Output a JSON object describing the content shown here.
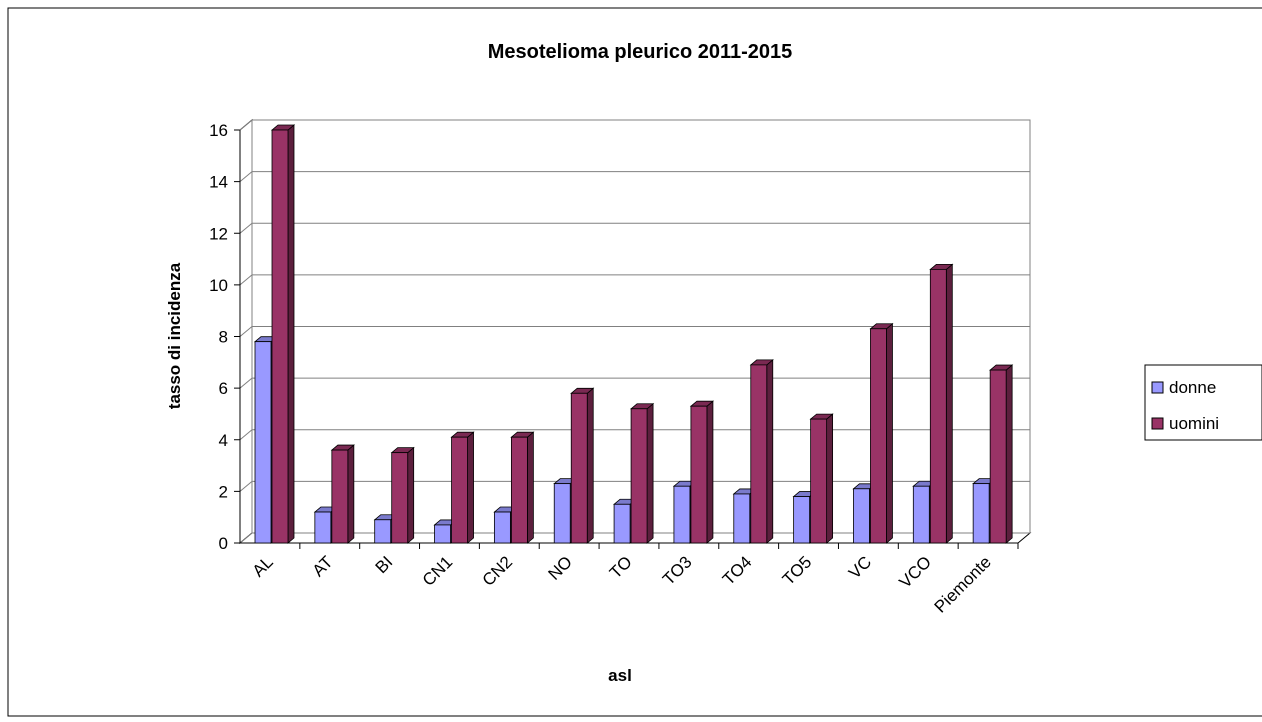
{
  "chart_data": {
    "type": "bar3d",
    "title": "Mesotelioma pleurico 2011-2015",
    "x_label": "asl",
    "y_label": "tasso di incidenza",
    "categories": [
      "AL",
      "AT",
      "BI",
      "CN1",
      "CN2",
      "NO",
      "TO",
      "TO3",
      "TO4",
      "TO5",
      "VC",
      "VCO",
      "Piemonte"
    ],
    "series": [
      {
        "name": "donne",
        "color": "#9999ff",
        "values": [
          7.8,
          1.2,
          0.9,
          0.7,
          1.2,
          2.3,
          1.5,
          2.2,
          1.9,
          1.8,
          2.1,
          2.2,
          2.3
        ]
      },
      {
        "name": "uomini",
        "color": "#993366",
        "values": [
          16,
          3.6,
          3.5,
          4.1,
          4.1,
          5.8,
          5.2,
          5.3,
          6.9,
          4.8,
          8.3,
          10.6,
          6.7
        ]
      }
    ],
    "ylim": [
      0,
      16
    ],
    "yticks": [
      0,
      2,
      4,
      6,
      8,
      10,
      12,
      14,
      16
    ],
    "grid": true,
    "legend": "right"
  }
}
